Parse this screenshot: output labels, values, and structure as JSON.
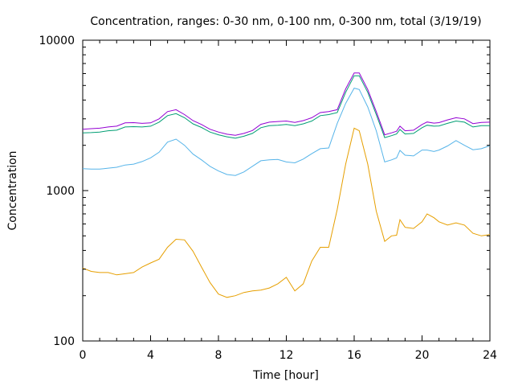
{
  "chart_data": {
    "type": "line",
    "title": "Concentration, ranges: 0-30 nm, 0-100 nm, 0-300 nm, total (3/19/19)",
    "xlabel": "Time [hour]",
    "ylabel": "Concentration",
    "xlim": [
      0,
      24
    ],
    "ylim": [
      100,
      10000
    ],
    "yscale": "log",
    "grid": false,
    "x_ticks": [
      0,
      4,
      8,
      12,
      16,
      20,
      24
    ],
    "x_tick_labels": [
      "0",
      "4",
      "8",
      "12",
      "16",
      "20",
      "24"
    ],
    "y_ticks": [
      100,
      1000,
      10000
    ],
    "y_tick_labels": [
      "100",
      "1000",
      "10000"
    ],
    "series": [
      {
        "color": "#e69f00",
        "x": [
          0,
          0.5,
          1,
          1.5,
          2,
          2.5,
          3,
          3.5,
          4,
          4.5,
          5,
          5.5,
          6,
          6.5,
          7,
          7.5,
          8,
          8.5,
          9,
          9.5,
          10,
          10.5,
          11,
          11.5,
          12,
          12.5,
          13,
          13.5,
          14,
          14.5,
          15,
          15.5,
          16,
          16.3,
          16.8,
          17.3,
          17.8,
          18.2,
          18.5,
          18.7,
          19,
          19.5,
          20,
          20.3,
          20.7,
          21,
          21.5,
          22,
          22.5,
          23,
          23.5,
          24
        ],
        "y": [
          305,
          290,
          285,
          285,
          275,
          280,
          285,
          310,
          330,
          350,
          420,
          475,
          470,
          395,
          310,
          245,
          205,
          195,
          200,
          210,
          215,
          218,
          225,
          240,
          265,
          215,
          240,
          340,
          420,
          420,
          750,
          1500,
          2600,
          2500,
          1500,
          730,
          460,
          500,
          505,
          640,
          570,
          560,
          620,
          700,
          660,
          620,
          590,
          610,
          590,
          520,
          500,
          510
        ]
      },
      {
        "color": "#56b4e9",
        "x": [
          0,
          0.5,
          1,
          1.5,
          2,
          2.5,
          3,
          3.5,
          4,
          4.5,
          5,
          5.5,
          6,
          6.5,
          7,
          7.5,
          8,
          8.5,
          9,
          9.5,
          10,
          10.5,
          11,
          11.5,
          12,
          12.5,
          13,
          13.5,
          14,
          14.5,
          15,
          15.5,
          16,
          16.3,
          16.8,
          17.3,
          17.8,
          18.2,
          18.5,
          18.7,
          19,
          19.5,
          20,
          20.3,
          20.7,
          21,
          21.5,
          22,
          22.5,
          23,
          23.5,
          24
        ],
        "y": [
          1400,
          1390,
          1390,
          1410,
          1430,
          1480,
          1500,
          1560,
          1650,
          1800,
          2100,
          2200,
          2000,
          1750,
          1600,
          1450,
          1350,
          1280,
          1260,
          1330,
          1450,
          1580,
          1600,
          1610,
          1550,
          1530,
          1620,
          1760,
          1900,
          1920,
          2800,
          3800,
          4800,
          4700,
          3600,
          2500,
          1550,
          1600,
          1650,
          1850,
          1720,
          1700,
          1860,
          1860,
          1820,
          1860,
          1980,
          2150,
          2000,
          1870,
          1900,
          1990
        ]
      },
      {
        "color": "#009e73",
        "x": [
          0,
          0.5,
          1,
          1.5,
          2,
          2.5,
          3,
          3.5,
          4,
          4.5,
          5,
          5.5,
          6,
          6.5,
          7,
          7.5,
          8,
          8.5,
          9,
          9.5,
          10,
          10.5,
          11,
          11.5,
          12,
          12.5,
          13,
          13.5,
          14,
          14.5,
          15,
          15.5,
          16,
          16.3,
          16.8,
          17.3,
          17.8,
          18.2,
          18.5,
          18.7,
          19,
          19.5,
          20,
          20.3,
          20.7,
          21,
          21.5,
          22,
          22.5,
          23,
          23.5,
          24
        ],
        "y": [
          2420,
          2430,
          2450,
          2500,
          2520,
          2650,
          2660,
          2650,
          2680,
          2850,
          3150,
          3250,
          3050,
          2780,
          2630,
          2450,
          2350,
          2280,
          2230,
          2300,
          2400,
          2620,
          2700,
          2720,
          2750,
          2700,
          2780,
          2900,
          3150,
          3200,
          3300,
          4500,
          5800,
          5800,
          4500,
          3200,
          2250,
          2320,
          2380,
          2550,
          2380,
          2400,
          2620,
          2720,
          2680,
          2690,
          2800,
          2900,
          2850,
          2650,
          2700,
          2700
        ]
      },
      {
        "color": "#9400d3",
        "x": [
          0,
          0.5,
          1,
          1.5,
          2,
          2.5,
          3,
          3.5,
          4,
          4.5,
          5,
          5.5,
          6,
          6.5,
          7,
          7.5,
          8,
          8.5,
          9,
          9.5,
          10,
          10.5,
          11,
          11.5,
          12,
          12.5,
          13,
          13.5,
          14,
          14.5,
          15,
          15.5,
          16,
          16.3,
          16.8,
          17.3,
          17.8,
          18.2,
          18.5,
          18.7,
          19,
          19.5,
          20,
          20.3,
          20.7,
          21,
          21.5,
          22,
          22.5,
          23,
          23.5,
          24
        ],
        "y": [
          2560,
          2580,
          2600,
          2650,
          2680,
          2820,
          2830,
          2800,
          2820,
          3000,
          3350,
          3450,
          3200,
          2920,
          2750,
          2560,
          2450,
          2370,
          2330,
          2400,
          2510,
          2760,
          2850,
          2880,
          2900,
          2840,
          2920,
          3050,
          3300,
          3350,
          3450,
          4750,
          6050,
          6050,
          4700,
          3350,
          2350,
          2420,
          2480,
          2680,
          2500,
          2520,
          2750,
          2860,
          2810,
          2830,
          2950,
          3050,
          3000,
          2790,
          2840,
          2850
        ]
      }
    ]
  }
}
